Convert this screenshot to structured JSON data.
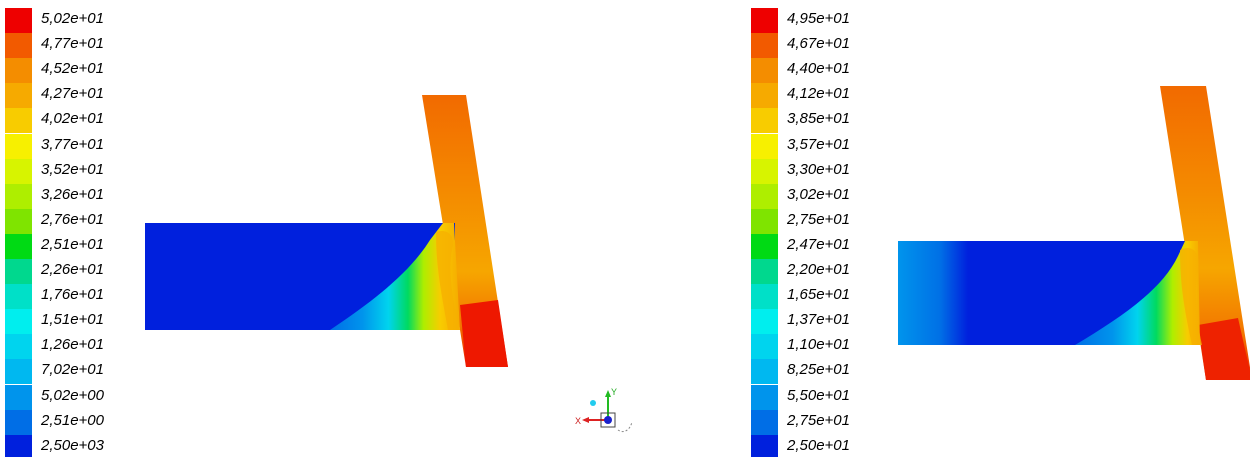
{
  "colors": {
    "scale": [
      "#ee0000",
      "#f25a00",
      "#f48d00",
      "#f6aa00",
      "#f8cc00",
      "#f7f000",
      "#d7f400",
      "#aeee00",
      "#7fe400",
      "#00da14",
      "#00d88e",
      "#00e0c8",
      "#00eeee",
      "#00d4ee",
      "#00b8f0",
      "#0094ec",
      "#006ee6",
      "#0020dd"
    ],
    "background": "#ffffff"
  },
  "legend_left": {
    "labels": [
      "5,02e+01",
      "4,77e+01",
      "4,52e+01",
      "4,27e+01",
      "4,02e+01",
      "3,77e+01",
      "3,52e+01",
      "3,26e+01",
      "2,76e+01",
      "2,51e+01",
      "2,26e+01",
      "1,76e+01",
      "1,51e+01",
      "1,26e+01",
      "7,02e+01",
      "5,02e+00",
      "2,51e+00",
      "2,50e+03"
    ]
  },
  "legend_right": {
    "labels": [
      "4,95e+01",
      "4,67e+01",
      "4,40e+01",
      "4,12e+01",
      "3,85e+01",
      "3,57e+01",
      "3,30e+01",
      "3,02e+01",
      "2,75e+01",
      "2,47e+01",
      "2,20e+01",
      "1,65e+01",
      "1,37e+01",
      "1,10e+01",
      "8,25e+01",
      "5,50e+01",
      "2,75e+01",
      "2,50e+01"
    ]
  },
  "triad": {
    "x_label": "X",
    "y_label": "Y",
    "icons": [
      "coordinate-triad-icon"
    ]
  }
}
